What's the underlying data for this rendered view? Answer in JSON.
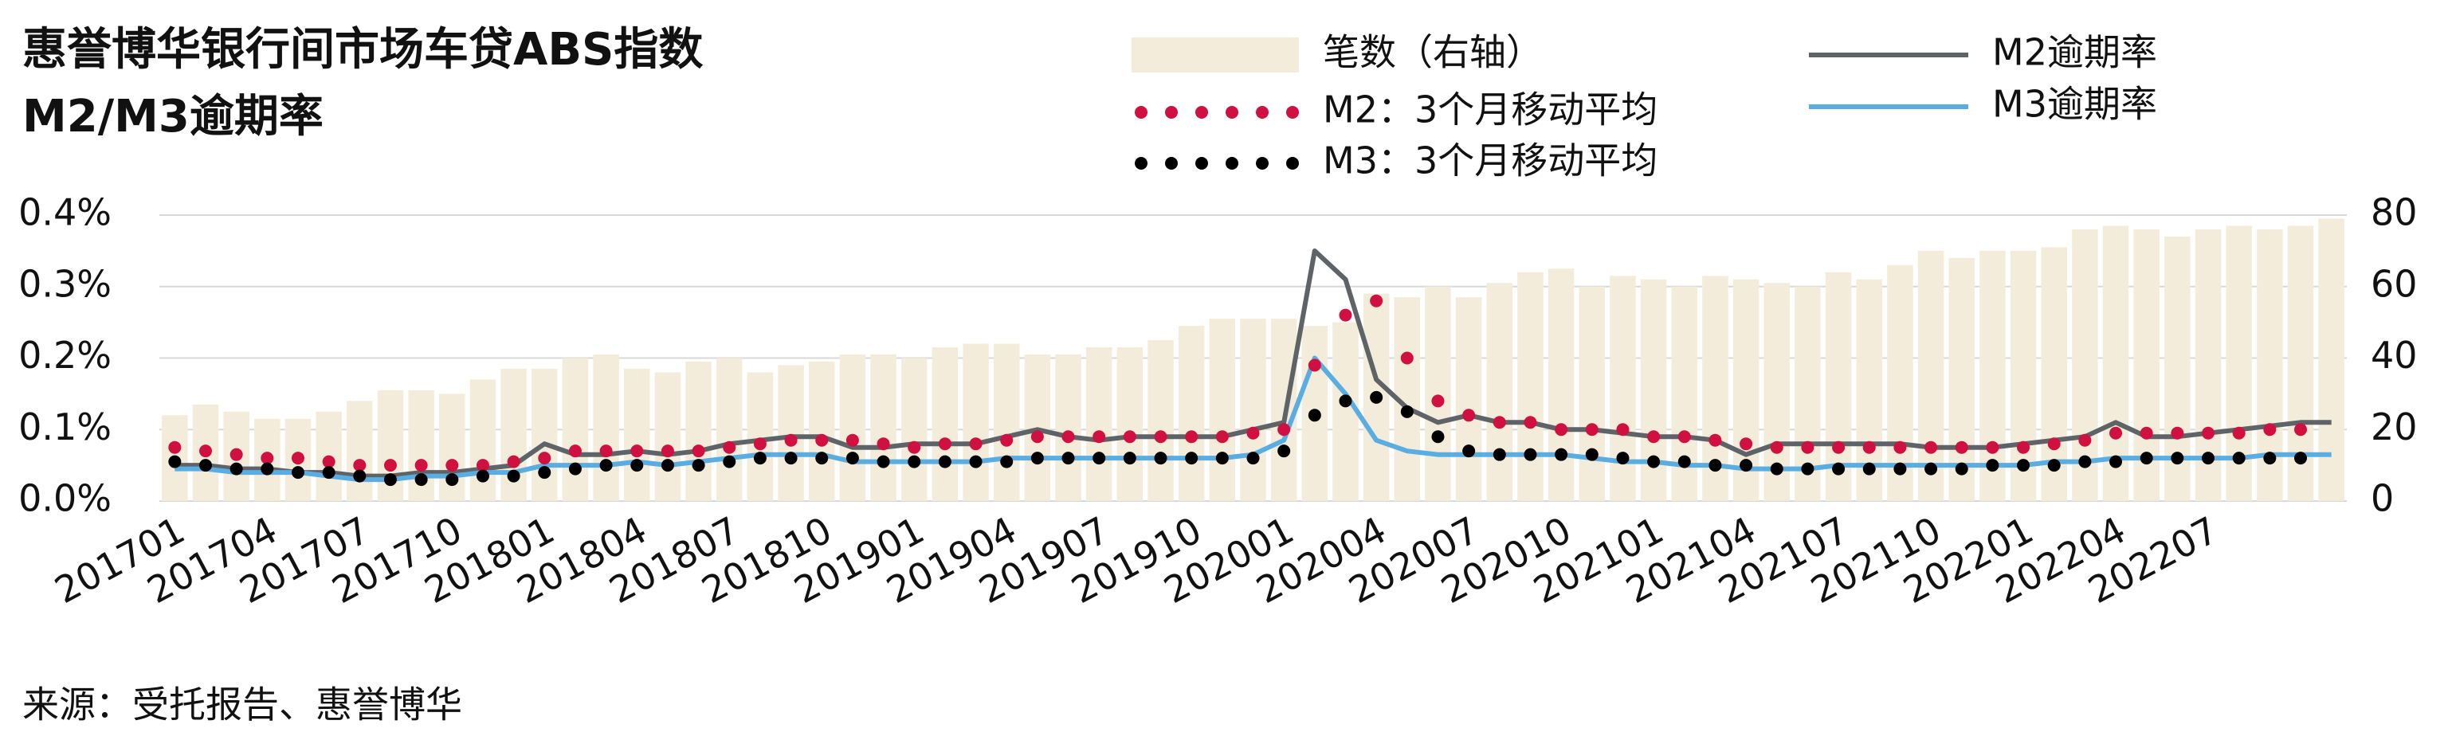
{
  "chart_data": {
    "type": "combo",
    "title": "惠誉博华银行间市场车贷ABS指数",
    "subtitle": "M2/M3逾期率",
    "source": "来源：受托报告、惠誉博华",
    "categories": [
      "201701",
      null,
      null,
      "201704",
      null,
      null,
      "201707",
      null,
      null,
      "201710",
      null,
      null,
      "201801",
      null,
      null,
      "201804",
      null,
      null,
      "201807",
      null,
      null,
      "201810",
      null,
      null,
      "201901",
      null,
      null,
      "201904",
      null,
      null,
      "201907",
      null,
      null,
      "201910",
      null,
      null,
      "202001",
      null,
      null,
      "202004",
      null,
      null,
      "202007",
      null,
      null,
      "202010",
      null,
      null,
      "202101",
      null,
      null,
      "202104",
      null,
      null,
      "202107",
      null,
      null,
      "202110",
      null,
      null,
      "202201",
      null,
      null,
      "202204",
      null,
      null,
      "202207",
      null,
      null,
      null,
      null
    ],
    "ylim": [
      0,
      0.4
    ],
    "yticks": [
      {
        "value": 0,
        "label": "0.0%"
      },
      {
        "value": 0.1,
        "label": "0.1%"
      },
      {
        "value": 0.2,
        "label": "0.2%"
      },
      {
        "value": 0.3,
        "label": "0.3%"
      },
      {
        "value": 0.4,
        "label": "0.4%"
      }
    ],
    "y2lim": [
      0,
      80
    ],
    "y2ticks": [
      0,
      20,
      40,
      60,
      80
    ],
    "grid": true,
    "series": [
      {
        "name": "笔数（右轴）",
        "kind": "bar",
        "axis": "y2",
        "color": "#f4ecda",
        "values": [
          24,
          27,
          25,
          23,
          23,
          25,
          28,
          31,
          31,
          30,
          34,
          37,
          37,
          40,
          41,
          37,
          36,
          39,
          40,
          36,
          38,
          39,
          41,
          41,
          40,
          43,
          44,
          44,
          41,
          41,
          43,
          43,
          45,
          49,
          51,
          51,
          51,
          49,
          50,
          58,
          57,
          60,
          57,
          61,
          64,
          65,
          60,
          63,
          62,
          60,
          63,
          62,
          61,
          60,
          64,
          62,
          66,
          70,
          68,
          70,
          70,
          71,
          76,
          77,
          76,
          74,
          76,
          77,
          76,
          77,
          79
        ]
      },
      {
        "name": "M2：3个月移动平均",
        "kind": "dots",
        "color": "#d01040",
        "values": [
          0.075,
          0.07,
          0.065,
          0.06,
          0.06,
          0.055,
          0.05,
          0.05,
          0.05,
          0.05,
          0.05,
          0.055,
          0.06,
          0.07,
          0.07,
          0.07,
          0.07,
          0.07,
          0.075,
          0.08,
          0.085,
          0.085,
          0.085,
          0.08,
          0.075,
          0.08,
          0.08,
          0.085,
          0.09,
          0.09,
          0.09,
          0.09,
          0.09,
          0.09,
          0.09,
          0.095,
          0.1,
          0.19,
          0.26,
          0.28,
          0.2,
          0.14,
          0.12,
          0.11,
          0.11,
          0.1,
          0.1,
          0.1,
          0.09,
          0.09,
          0.085,
          0.08,
          0.075,
          0.075,
          0.075,
          0.075,
          0.075,
          0.075,
          0.075,
          0.075,
          0.075,
          0.08,
          0.085,
          0.095,
          0.095,
          0.095,
          0.095,
          0.095,
          0.1,
          0.1,
          null
        ]
      },
      {
        "name": "M3：3个月移动平均",
        "kind": "dots",
        "color": "#000000",
        "values": [
          0.055,
          0.05,
          0.045,
          0.045,
          0.04,
          0.04,
          0.035,
          0.03,
          0.03,
          0.03,
          0.035,
          0.035,
          0.04,
          0.045,
          0.05,
          0.05,
          0.05,
          0.05,
          0.055,
          0.06,
          0.06,
          0.06,
          0.06,
          0.055,
          0.055,
          0.055,
          0.055,
          0.055,
          0.06,
          0.06,
          0.06,
          0.06,
          0.06,
          0.06,
          0.06,
          0.06,
          0.07,
          0.12,
          0.14,
          0.145,
          0.125,
          0.09,
          0.07,
          0.065,
          0.065,
          0.065,
          0.065,
          0.06,
          0.055,
          0.055,
          0.05,
          0.05,
          0.045,
          0.045,
          0.045,
          0.045,
          0.045,
          0.045,
          0.045,
          0.05,
          0.05,
          0.05,
          0.055,
          0.055,
          0.06,
          0.06,
          0.06,
          0.06,
          0.06,
          0.06,
          null
        ]
      },
      {
        "name": "M2逾期率",
        "kind": "line",
        "color": "#5d6367",
        "values": [
          0.05,
          0.05,
          0.045,
          0.045,
          0.04,
          0.04,
          0.035,
          0.035,
          0.04,
          0.04,
          0.045,
          0.05,
          0.08,
          0.065,
          0.065,
          0.07,
          0.065,
          0.07,
          0.08,
          0.085,
          0.09,
          0.09,
          0.075,
          0.075,
          0.08,
          0.08,
          0.08,
          0.09,
          0.1,
          0.09,
          0.085,
          0.09,
          0.09,
          0.09,
          0.09,
          0.1,
          0.11,
          0.35,
          0.31,
          0.17,
          0.13,
          0.11,
          0.12,
          0.11,
          0.11,
          0.1,
          0.1,
          0.095,
          0.09,
          0.09,
          0.085,
          0.065,
          0.08,
          0.08,
          0.08,
          0.08,
          0.08,
          0.075,
          0.075,
          0.075,
          0.08,
          0.085,
          0.09,
          0.11,
          0.09,
          0.09,
          0.095,
          0.1,
          0.105,
          0.11,
          0.11
        ]
      },
      {
        "name": "M3逾期率",
        "kind": "line",
        "color": "#5aade0",
        "values": [
          0.045,
          0.045,
          0.04,
          0.04,
          0.04,
          0.035,
          0.03,
          0.03,
          0.035,
          0.035,
          0.04,
          0.04,
          0.05,
          0.05,
          0.05,
          0.055,
          0.05,
          0.055,
          0.06,
          0.065,
          0.065,
          0.065,
          0.055,
          0.055,
          0.055,
          0.055,
          0.055,
          0.06,
          0.06,
          0.06,
          0.06,
          0.06,
          0.06,
          0.06,
          0.06,
          0.065,
          0.085,
          0.2,
          0.15,
          0.085,
          0.07,
          0.065,
          0.065,
          0.065,
          0.065,
          0.065,
          0.06,
          0.055,
          0.055,
          0.05,
          0.05,
          0.045,
          0.045,
          0.045,
          0.05,
          0.05,
          0.05,
          0.05,
          0.05,
          0.05,
          0.05,
          0.055,
          0.055,
          0.06,
          0.06,
          0.06,
          0.06,
          0.06,
          0.065,
          0.065,
          0.065
        ]
      }
    ]
  }
}
